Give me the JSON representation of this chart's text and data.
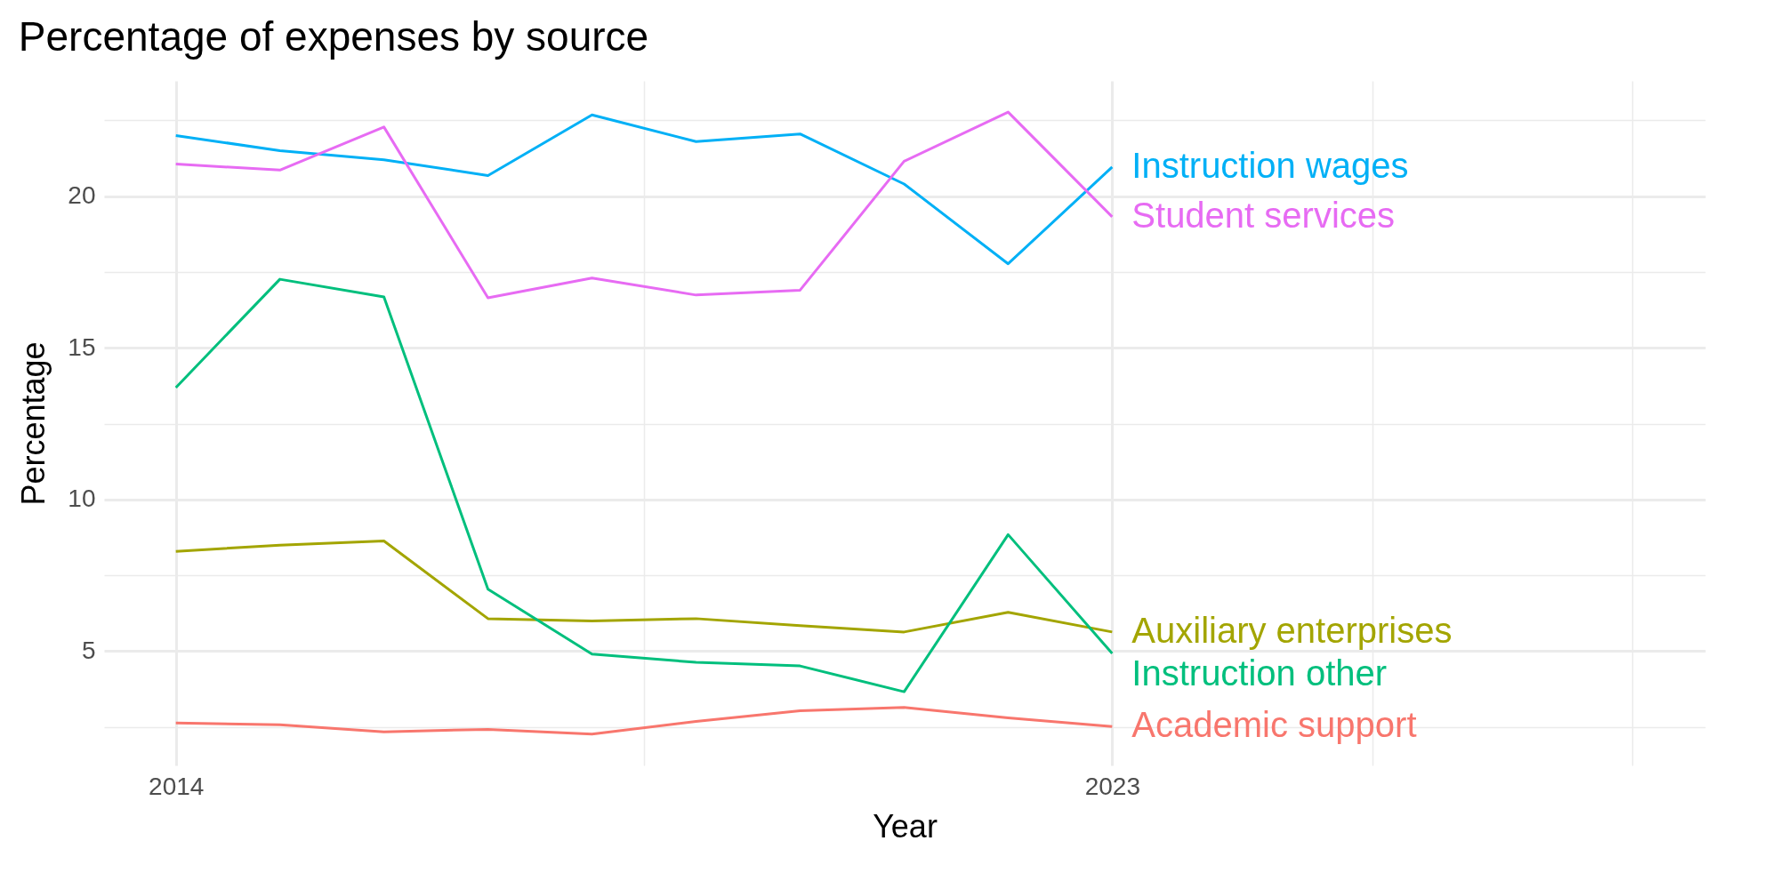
{
  "chart_data": {
    "type": "line",
    "title": "Percentage of expenses by source",
    "xlabel": "Year",
    "ylabel": "Percentage",
    "x": [
      2014,
      2015,
      2016,
      2017,
      2018,
      2019,
      2020,
      2021,
      2022,
      2023
    ],
    "series": [
      {
        "name": "Academic support",
        "color": "#f8766d",
        "values": [
          2.63,
          2.57,
          2.34,
          2.42,
          2.26,
          2.68,
          3.03,
          3.14,
          2.8,
          2.51
        ]
      },
      {
        "name": "Auxiliary enterprises",
        "color": "#a3a500",
        "values": [
          8.29,
          8.49,
          8.63,
          6.07,
          5.99,
          6.07,
          5.84,
          5.63,
          6.28,
          5.63
        ]
      },
      {
        "name": "Instruction other",
        "color": "#00bf7d",
        "values": [
          13.69,
          17.26,
          16.68,
          7.04,
          4.9,
          4.63,
          4.51,
          3.66,
          8.84,
          4.92
        ]
      },
      {
        "name": "Instruction wages",
        "color": "#00b0f6",
        "values": [
          22.0,
          21.5,
          21.2,
          20.68,
          22.68,
          21.8,
          22.05,
          20.4,
          17.77,
          20.96
        ]
      },
      {
        "name": "Student services",
        "color": "#e76bf3",
        "values": [
          21.06,
          20.86,
          22.28,
          16.65,
          17.3,
          16.74,
          16.9,
          21.15,
          22.77,
          19.32
        ]
      }
    ],
    "xlim": [
      2013.31,
      2028.7
    ],
    "xticks": [
      2014,
      {
        "value": 2018.5,
        "label": null
      },
      2023,
      {
        "value": 2025.5,
        "label": null
      },
      {
        "value": 2028,
        "label": null
      }
    ],
    "ylim": [
      1.23,
      23.8
    ],
    "yticks": [
      {
        "value": 2.5,
        "label": null
      },
      5,
      {
        "value": 7.5,
        "label": null
      },
      10,
      {
        "value": 12.5,
        "label": null
      },
      15,
      {
        "value": 17.5,
        "label": null
      },
      20,
      {
        "value": 22.5,
        "label": null
      }
    ],
    "grid": true,
    "legend": false,
    "line_style": "solid",
    "marker": "none"
  }
}
